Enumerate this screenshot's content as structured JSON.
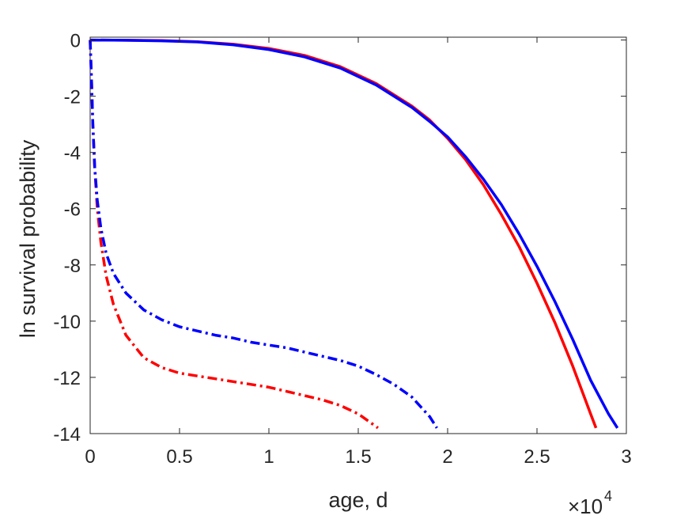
{
  "chart_data": {
    "type": "line",
    "title": "",
    "xlabel": "age, d",
    "ylabel": "ln survival probability",
    "x_multiplier_label": "×10",
    "x_multiplier_exponent": "4",
    "xlim": [
      0,
      30000
    ],
    "ylim": [
      -14,
      0.1
    ],
    "xticks": [
      0,
      5000,
      10000,
      15000,
      20000,
      25000,
      30000
    ],
    "xtick_labels": [
      "0",
      "0.5",
      "1",
      "1.5",
      "2",
      "2.5",
      "3"
    ],
    "yticks": [
      0,
      -2,
      -4,
      -6,
      -8,
      -10,
      -12,
      -14
    ],
    "ytick_labels": [
      "0",
      "-2",
      "-4",
      "-6",
      "-8",
      "-10",
      "-12",
      "-14"
    ],
    "grid": false,
    "legend": "none",
    "series": [
      {
        "color": "#ff0000",
        "style": "solid",
        "x": [
          0,
          2000,
          4000,
          6000,
          8000,
          10000,
          12000,
          14000,
          16000,
          18000,
          19000,
          20000,
          21000,
          22000,
          23000,
          24000,
          25000,
          26000,
          27000,
          28000,
          28300
        ],
        "y": [
          0,
          -0.01,
          -0.02,
          -0.06,
          -0.15,
          -0.3,
          -0.55,
          -0.95,
          -1.55,
          -2.35,
          -2.85,
          -3.5,
          -4.25,
          -5.15,
          -6.2,
          -7.35,
          -8.65,
          -10.05,
          -11.6,
          -13.3,
          -13.8
        ]
      },
      {
        "color": "#0000ff",
        "style": "solid",
        "x": [
          0,
          2000,
          4000,
          6000,
          8000,
          10000,
          12000,
          14000,
          16000,
          18000,
          19000,
          20000,
          21000,
          22000,
          23000,
          24000,
          25000,
          26000,
          27000,
          28000,
          29000,
          29500
        ],
        "y": [
          0,
          -0.01,
          -0.03,
          -0.07,
          -0.17,
          -0.34,
          -0.6,
          -1.0,
          -1.6,
          -2.4,
          -2.9,
          -3.45,
          -4.15,
          -4.95,
          -5.85,
          -6.9,
          -8.05,
          -9.3,
          -10.65,
          -12.1,
          -13.3,
          -13.8
        ]
      },
      {
        "color": "#ff0000",
        "style": "dashdot",
        "x": [
          0,
          80,
          150,
          250,
          400,
          600,
          900,
          1300,
          2000,
          3000,
          4000,
          5000,
          6000,
          7000,
          8000,
          9000,
          10000,
          11000,
          12000,
          13000,
          14000,
          15000,
          16000,
          16100
        ],
        "y": [
          0,
          -1.5,
          -3.0,
          -4.5,
          -6.0,
          -7.2,
          -8.4,
          -9.4,
          -10.5,
          -11.3,
          -11.65,
          -11.85,
          -11.95,
          -12.05,
          -12.15,
          -12.25,
          -12.35,
          -12.5,
          -12.65,
          -12.8,
          -13.0,
          -13.3,
          -13.75,
          -13.8
        ]
      },
      {
        "color": "#0000ff",
        "style": "dashdot",
        "x": [
          0,
          80,
          150,
          250,
          400,
          600,
          900,
          1300,
          2000,
          3000,
          4000,
          5000,
          6000,
          7000,
          8000,
          9000,
          10000,
          11000,
          12000,
          13000,
          14000,
          15000,
          16000,
          17000,
          18000,
          19000,
          19400
        ],
        "y": [
          0,
          -1.5,
          -3.0,
          -4.5,
          -5.7,
          -6.7,
          -7.6,
          -8.3,
          -9.0,
          -9.6,
          -9.95,
          -10.2,
          -10.35,
          -10.5,
          -10.6,
          -10.75,
          -10.85,
          -10.95,
          -11.1,
          -11.25,
          -11.4,
          -11.6,
          -11.9,
          -12.25,
          -12.7,
          -13.4,
          -13.8
        ]
      }
    ]
  }
}
